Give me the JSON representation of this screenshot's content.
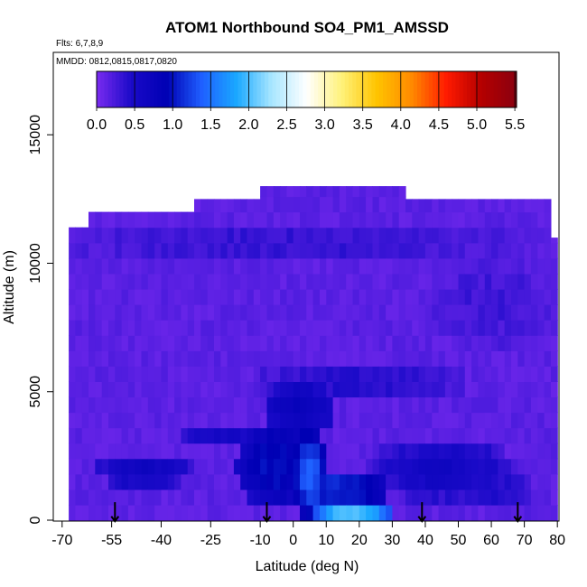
{
  "chart_data": {
    "type": "heatmap",
    "title": "ATOM1 Northbound SO4_PM1_AMSSD",
    "annotations": {
      "flights": "Flts: 6,7,8,9",
      "dates": "MMDD: 0812,0815,0817,0820"
    },
    "xlabel": "Latitude (deg N)",
    "ylabel": "Altitude (m)",
    "xlim": [
      -70,
      84
    ],
    "ylim": [
      0,
      18000
    ],
    "x_ticks": [
      -70,
      -55,
      -40,
      -25,
      -10,
      0,
      10,
      20,
      30,
      40,
      50,
      60,
      70,
      80
    ],
    "y_ticks": [
      0,
      5000,
      10000,
      15000
    ],
    "colorbar": {
      "ticks": [
        0.0,
        0.5,
        1.0,
        1.5,
        2.0,
        2.5,
        3.0,
        3.5,
        4.0,
        4.5,
        5.0,
        5.5
      ],
      "range": [
        0,
        5.5
      ],
      "placement": "top-inside",
      "stops": [
        "#7a2bf0",
        "#1a0ac8",
        "#0000b4",
        "#1f5fff",
        "#1aa8ff",
        "#a8e6ff",
        "#ffffff",
        "#fff27a",
        "#ffc400",
        "#ff8a00",
        "#ff1a00",
        "#b40000",
        "#8a0010"
      ]
    },
    "flight_markers_lat": [
      -54,
      -8,
      39,
      68
    ],
    "field": {
      "lat_min": -68,
      "lat_max": 80,
      "alt_max_profile": [
        [
          -68,
          11400
        ],
        [
          -63,
          12000
        ],
        [
          -30,
          12500
        ],
        [
          -10,
          13000
        ],
        [
          30,
          13000
        ],
        [
          34,
          12500
        ],
        [
          76,
          12500
        ],
        [
          78,
          11000
        ],
        [
          80,
          8000
        ]
      ],
      "background_value": 0.15,
      "features": [
        {
          "lat": -5,
          "alt": 2200,
          "value": 1.0,
          "w": 25,
          "h": 3500
        },
        {
          "lat": 5,
          "alt": 1800,
          "value": 1.4,
          "w": 10,
          "h": 3800
        },
        {
          "lat": 2,
          "alt": 4300,
          "value": 0.8,
          "w": 22,
          "h": 2200
        },
        {
          "lat": 18,
          "alt": 400,
          "value": 2.1,
          "w": 26,
          "h": 900
        },
        {
          "lat": 15,
          "alt": 1200,
          "value": 1.2,
          "w": 30,
          "h": 1400
        },
        {
          "lat": -45,
          "alt": 1900,
          "value": 0.7,
          "w": 30,
          "h": 1200
        },
        {
          "lat": -20,
          "alt": 3300,
          "value": 0.55,
          "w": 28,
          "h": 1000
        },
        {
          "lat": 45,
          "alt": 2000,
          "value": 0.6,
          "w": 45,
          "h": 2500
        },
        {
          "lat": 60,
          "alt": 1200,
          "value": 0.45,
          "w": 25,
          "h": 1600
        },
        {
          "lat": 20,
          "alt": 5400,
          "value": 0.45,
          "w": 70,
          "h": 1300
        },
        {
          "lat": 0,
          "alt": 10800,
          "value": 0.35,
          "w": 150,
          "h": 1800
        },
        {
          "lat": 60,
          "alt": 8500,
          "value": 0.3,
          "w": 40,
          "h": 4000
        }
      ]
    }
  }
}
